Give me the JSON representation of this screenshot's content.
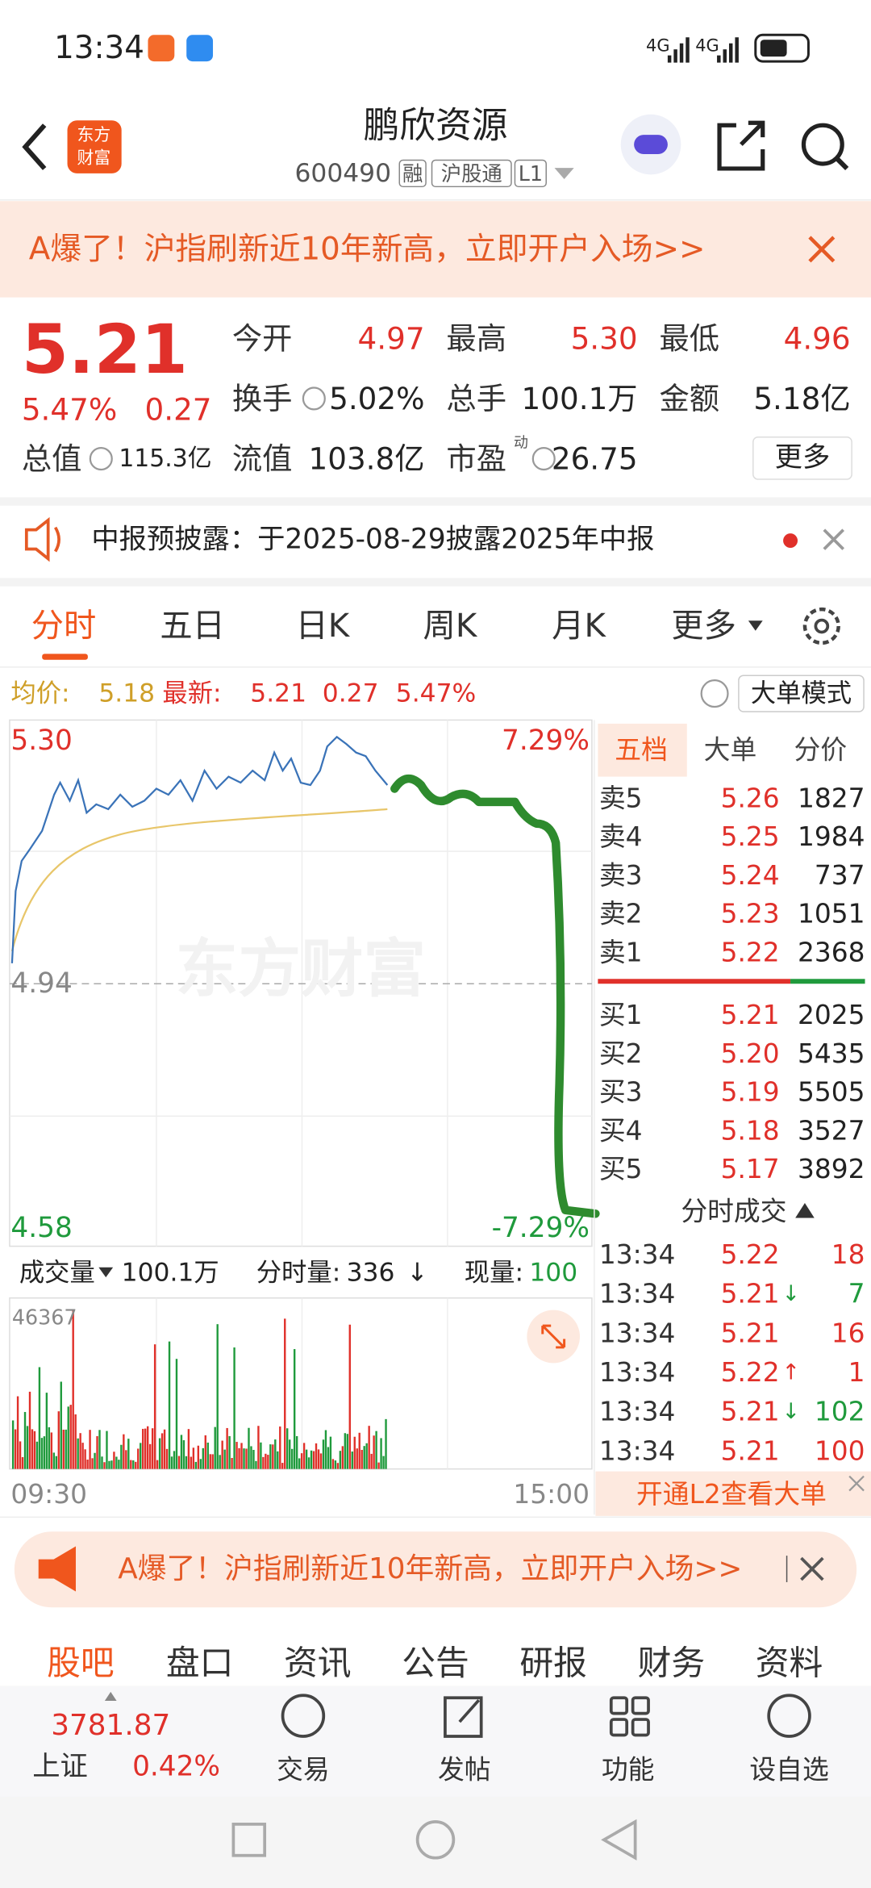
{
  "status_bar": {
    "time": "13:34",
    "network": [
      "4G",
      "4G"
    ]
  },
  "header": {
    "logo": [
      "东方",
      "财富"
    ],
    "title": "鹏欣资源",
    "code": "600490",
    "tags": [
      "融",
      "沪股通",
      "L1"
    ]
  },
  "promo_banner": {
    "text": "A爆了！沪指刷新近10年新高，立即开户入场>>"
  },
  "quote": {
    "price": "5.21",
    "change_pct": "5.47%",
    "change": "0.27",
    "stats": [
      {
        "label": "今开",
        "value": "4.97"
      },
      {
        "label": "最高",
        "value": "5.30"
      },
      {
        "label": "最低",
        "value": "4.96"
      },
      {
        "label": "换手",
        "value": "5.02%"
      },
      {
        "label": "总手",
        "value": "100.1万"
      },
      {
        "label": "金额",
        "value": "5.18亿"
      },
      {
        "label": "总值",
        "value": "115.3亿"
      },
      {
        "label": "流值",
        "value": "103.8亿"
      },
      {
        "label": "市盈",
        "value": "26.75"
      }
    ],
    "pe_tag": "动",
    "more": "更多"
  },
  "notice": {
    "text": "中报预披露：于2025-08-29披露2025年中报"
  },
  "chart_tabs": {
    "items": [
      "分时",
      "五日",
      "日K",
      "周K",
      "月K",
      "更多"
    ]
  },
  "chart_info": {
    "avg_label": "均价:",
    "avg": "5.18",
    "latest_label": "最新:",
    "latest": "5.21",
    "change": "0.27",
    "change_pct": "5.47%",
    "mode": "大单模式"
  },
  "intraday_chart": {
    "high": "5.30",
    "prev_close": "4.94",
    "low": "4.58",
    "high_pct": "7.29%",
    "low_pct": "-7.29%",
    "watermark": "东方财富",
    "start": "09:30",
    "end": "15:00"
  },
  "volume": {
    "label": "成交量",
    "total": "100.1万",
    "minute_label": "分时量:",
    "minute": "336",
    "minute_arrow": "↓",
    "now_label": "现量:",
    "now": "100",
    "max": "46367"
  },
  "order_book": {
    "tabs": [
      "五档",
      "大单",
      "分价"
    ],
    "asks": [
      [
        "卖5",
        "5.26",
        "1827"
      ],
      [
        "卖4",
        "5.25",
        "1984"
      ],
      [
        "卖3",
        "5.24",
        "737"
      ],
      [
        "卖2",
        "5.23",
        "1051"
      ],
      [
        "卖1",
        "5.22",
        "2368"
      ]
    ],
    "bids": [
      [
        "买1",
        "5.21",
        "2025"
      ],
      [
        "买2",
        "5.20",
        "5435"
      ],
      [
        "买3",
        "5.19",
        "5505"
      ],
      [
        "买4",
        "5.18",
        "3527"
      ],
      [
        "买5",
        "5.17",
        "3892"
      ]
    ]
  },
  "trades": {
    "title": "分时成交",
    "rows": [
      {
        "time": "13:34",
        "price": "5.22",
        "volume": "18"
      },
      {
        "time": "13:34",
        "price": "5.21",
        "arrow": "↓",
        "volume": "7"
      },
      {
        "time": "13:34",
        "price": "5.21",
        "volume": "16"
      },
      {
        "time": "13:34",
        "price": "5.22",
        "arrow": "↑",
        "volume": "1"
      },
      {
        "time": "13:34",
        "price": "5.21",
        "arrow": "↓",
        "volume": "102"
      },
      {
        "time": "13:34",
        "price": "5.21",
        "volume": "100"
      }
    ]
  },
  "l2": {
    "text": "开通L2查看大单"
  },
  "promo_bar": {
    "text": "A爆了！沪指刷新近10年新高，立即开户入场>>"
  },
  "bottom_tabs": [
    "股吧",
    "盘口",
    "资讯",
    "公告",
    "研报",
    "财务",
    "资料"
  ],
  "nav": {
    "index_value": "3781.87",
    "index_name": "上证",
    "index_pct": "0.42%",
    "items": [
      "交易",
      "发帖",
      "功能",
      "设自选"
    ]
  }
}
